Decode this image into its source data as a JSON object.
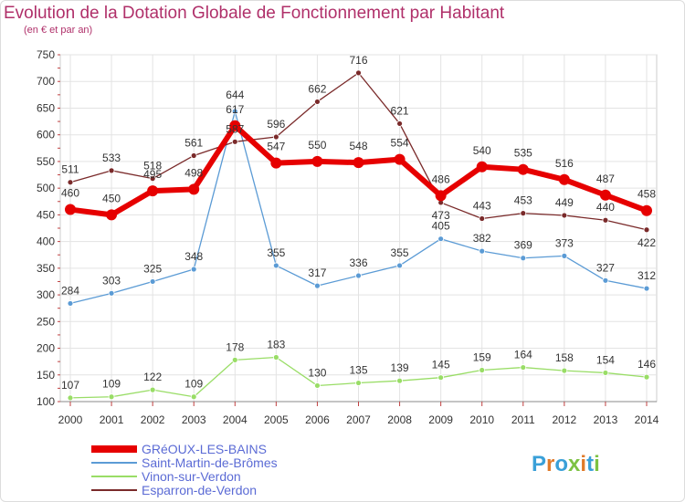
{
  "title": "Evolution de la Dotation Globale de Fonctionnement par Habitant",
  "subtitle": "(en € et par an)",
  "logo_text": "Proxiti",
  "chart_data": {
    "type": "line",
    "x": [
      "2000",
      "2001",
      "2002",
      "2003",
      "2004",
      "2005",
      "2006",
      "2007",
      "2008",
      "2009",
      "2010",
      "2011",
      "2012",
      "2013",
      "2014"
    ],
    "ylim": [
      100,
      750
    ],
    "yticks": [
      100,
      150,
      200,
      250,
      300,
      350,
      400,
      450,
      500,
      550,
      600,
      650,
      700,
      750
    ],
    "grid": true,
    "legend_position": "bottom-left",
    "series": [
      {
        "name": "GRéOUX-LES-BAINS",
        "color": "#e60000",
        "values": [
          460,
          450,
          495,
          498,
          617,
          547,
          550,
          548,
          554,
          486,
          540,
          535,
          516,
          487,
          458
        ]
      },
      {
        "name": "Saint-Martin-de-Brômes",
        "color": "#5b9bd5",
        "values": [
          284,
          303,
          325,
          348,
          644,
          355,
          317,
          336,
          355,
          405,
          382,
          369,
          373,
          327,
          312
        ]
      },
      {
        "name": "Vinon-sur-Verdon",
        "color": "#99dd66",
        "values": [
          107,
          109,
          122,
          109,
          178,
          183,
          130,
          135,
          139,
          145,
          159,
          164,
          158,
          154,
          146
        ]
      },
      {
        "name": "Esparron-de-Verdon",
        "color": "#7a2a2a",
        "values": [
          511,
          533,
          518,
          561,
          587,
          596,
          662,
          716,
          621,
          473,
          443,
          453,
          449,
          440,
          422
        ]
      }
    ]
  }
}
